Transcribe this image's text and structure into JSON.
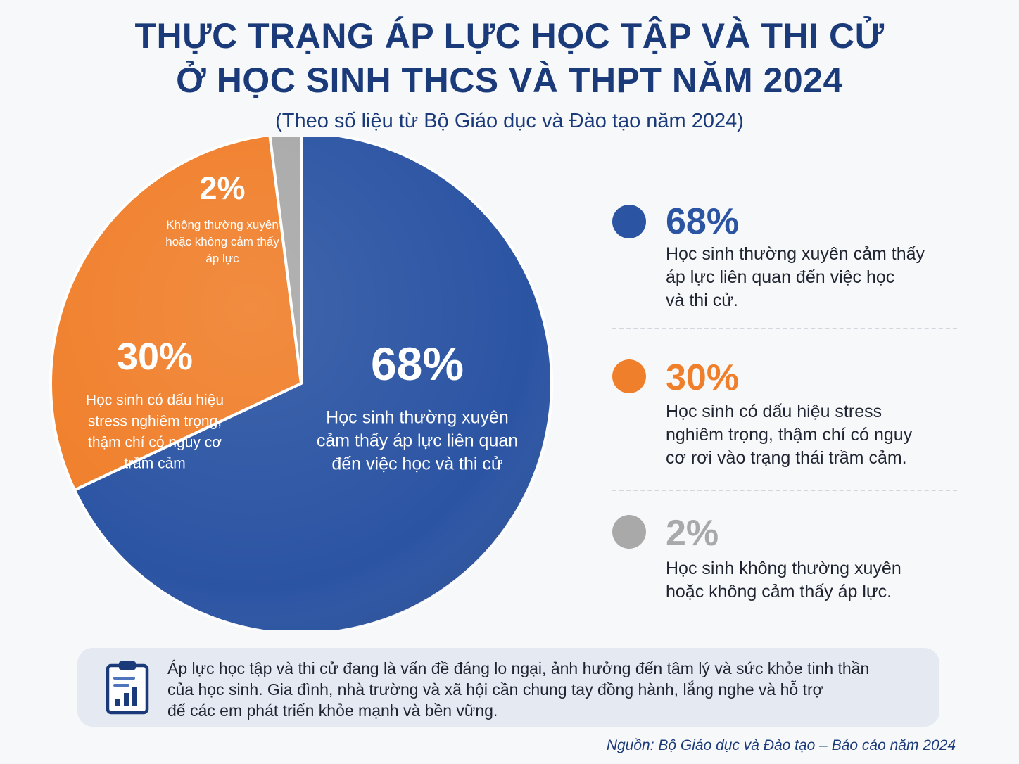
{
  "header": {
    "title_line1": "THỰC TRẠNG ÁP LỰC HỌC TẬP VÀ THI CỬ",
    "title_line2": "Ở HỌC SINH THCS VÀ THPT NĂM 2024",
    "subtitle": "(Theo số liệu từ Bộ Giáo dục và Đào tạo năm 2024)"
  },
  "chart_data": {
    "type": "pie",
    "title": "THỰC TRẠNG ÁP LỰC HỌC TẬP VÀ THI CỬ Ở HỌC SINH THCS VÀ THPT NĂM 2024",
    "slices": [
      {
        "value": 68,
        "percent_label": "68%",
        "label": "Học sinh thường xuyên cảm thấy áp lực liên quan đến việc học và thi cử",
        "label_lines": [
          "Học sinh thường xuyên",
          "cảm thấy áp lực liên quan",
          "đến việc học và thi cử"
        ],
        "color": "#2b54a3"
      },
      {
        "value": 30,
        "percent_label": "30%",
        "label": "Học sinh có dấu hiệu stress nghiêm trọng, thậm chí có nguy cơ trầm cảm",
        "label_lines": [
          "Học sinh có dấu hiệu",
          "stress nghiêm trọng,",
          "thậm chí có nguy cơ",
          "trầm cảm"
        ],
        "color": "#f07f2b"
      },
      {
        "value": 2,
        "percent_label": "2%",
        "label": "Không thường xuyên hoặc không cảm thấy áp lực",
        "label_lines": [
          "Không thường xuyên",
          "hoặc không cảm thấy",
          "áp lực"
        ],
        "color": "#a9a9a9"
      }
    ]
  },
  "legend": [
    {
      "percent": "68%",
      "text": "Học sinh thường xuyên cảm thấy\náp lực liên quan đến việc học\nvà thi cử.",
      "color": "#2b54a3"
    },
    {
      "percent": "30%",
      "text": "Học sinh có dấu hiệu stress\nnghiêm trọng, thậm chí có nguy\ncơ rơi vào trạng thái trầm cảm.",
      "color": "#f07f2b"
    },
    {
      "percent": "2%",
      "text": "Học sinh không thường xuyên\nhoặc không cảm thấy áp lực.",
      "color": "#a9a9a9"
    }
  ],
  "note": {
    "icon": "clipboard-chart-icon",
    "text": "Áp lực học tập và thi cử đang là vấn đề đáng lo ngại, ảnh hưởng đến tâm lý và sức khỏe tinh thần\ncủa học sinh. Gia đình, nhà trường và xã hội cần chung tay đồng hành, lắng nghe và hỗ trợ\nđể các em phát triển khỏe mạnh và bền vững."
  },
  "source": "Nguồn: Bộ Giáo dục và Đào tạo – Báo cáo năm 2024"
}
